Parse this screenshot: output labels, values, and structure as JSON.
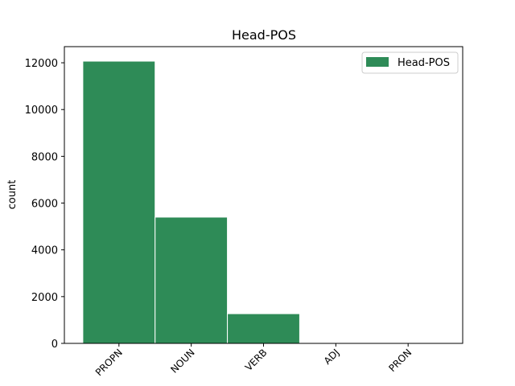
{
  "chart_data": {
    "type": "bar",
    "title": "Head-POS",
    "ylabel": "count",
    "categories": [
      "PROPN",
      "NOUN",
      "VERB",
      "ADJ",
      "PRON"
    ],
    "series": [
      {
        "name": "Head-POS",
        "color": "#2e8b57",
        "values": [
          12070,
          5400,
          1270,
          15,
          5
        ]
      }
    ],
    "ylim": [
      0,
      12690
    ],
    "yticks": [
      0,
      2000,
      4000,
      6000,
      8000,
      10000,
      12000
    ],
    "legend": "upper right"
  }
}
